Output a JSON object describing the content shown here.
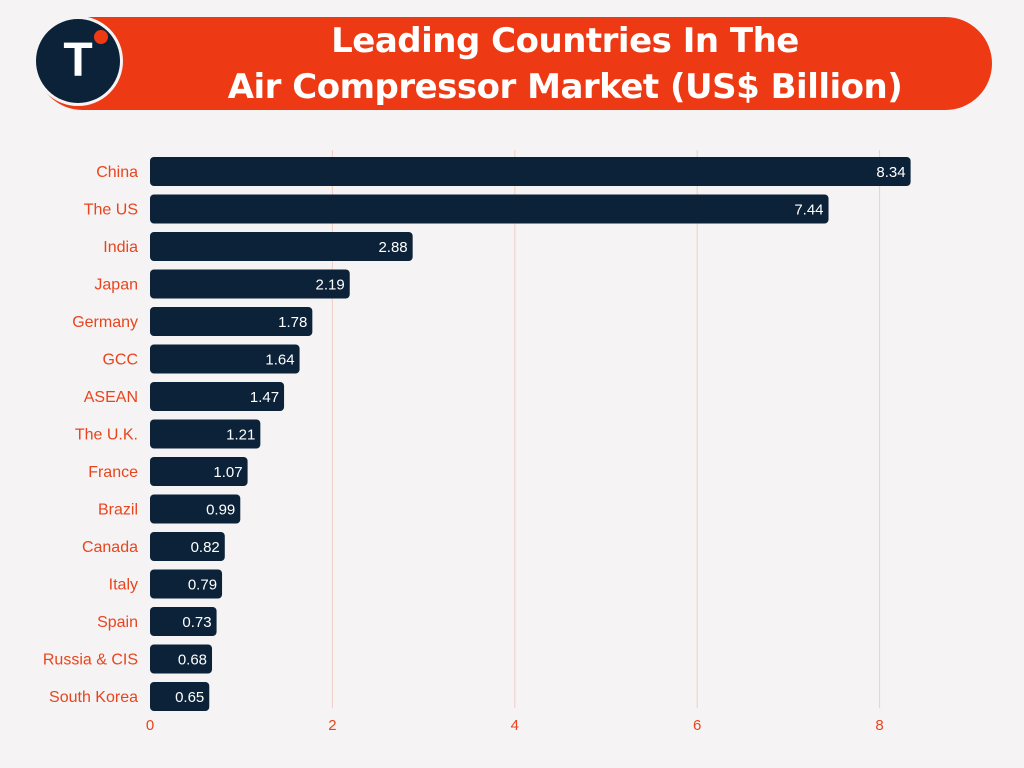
{
  "header": {
    "title_line1": "Leading Countries In The",
    "title_line2": "Air Compressor Market (US$ Billion)",
    "logo_letter": "T"
  },
  "colors": {
    "accent": "#ee3a14",
    "bar": "#0c2238",
    "label": "#e8451f",
    "grid": "#f0cfc6",
    "background": "#f5f3f3"
  },
  "chart_data": {
    "type": "bar",
    "orientation": "horizontal",
    "categories": [
      "China",
      "The US",
      "India",
      "Japan",
      "Germany",
      "GCC",
      "ASEAN",
      "The U.K.",
      "France",
      "Brazil",
      "Canada",
      "Italy",
      "Spain",
      "Russia & CIS",
      "South Korea"
    ],
    "values": [
      8.34,
      7.44,
      2.88,
      2.19,
      1.78,
      1.64,
      1.47,
      1.21,
      1.07,
      0.99,
      0.82,
      0.79,
      0.73,
      0.68,
      0.65
    ],
    "value_labels": [
      "8.34",
      "7.44",
      "2.88",
      "2.19",
      "1.78",
      "1.64",
      "1.47",
      "1.21",
      "1.07",
      "0.99",
      "0.82",
      "0.79",
      "0.73",
      "0.68",
      "0.65"
    ],
    "x_ticks": [
      0,
      2,
      4,
      6,
      8
    ],
    "xlim": [
      0,
      8.5
    ],
    "grid": true,
    "legend": "none"
  }
}
